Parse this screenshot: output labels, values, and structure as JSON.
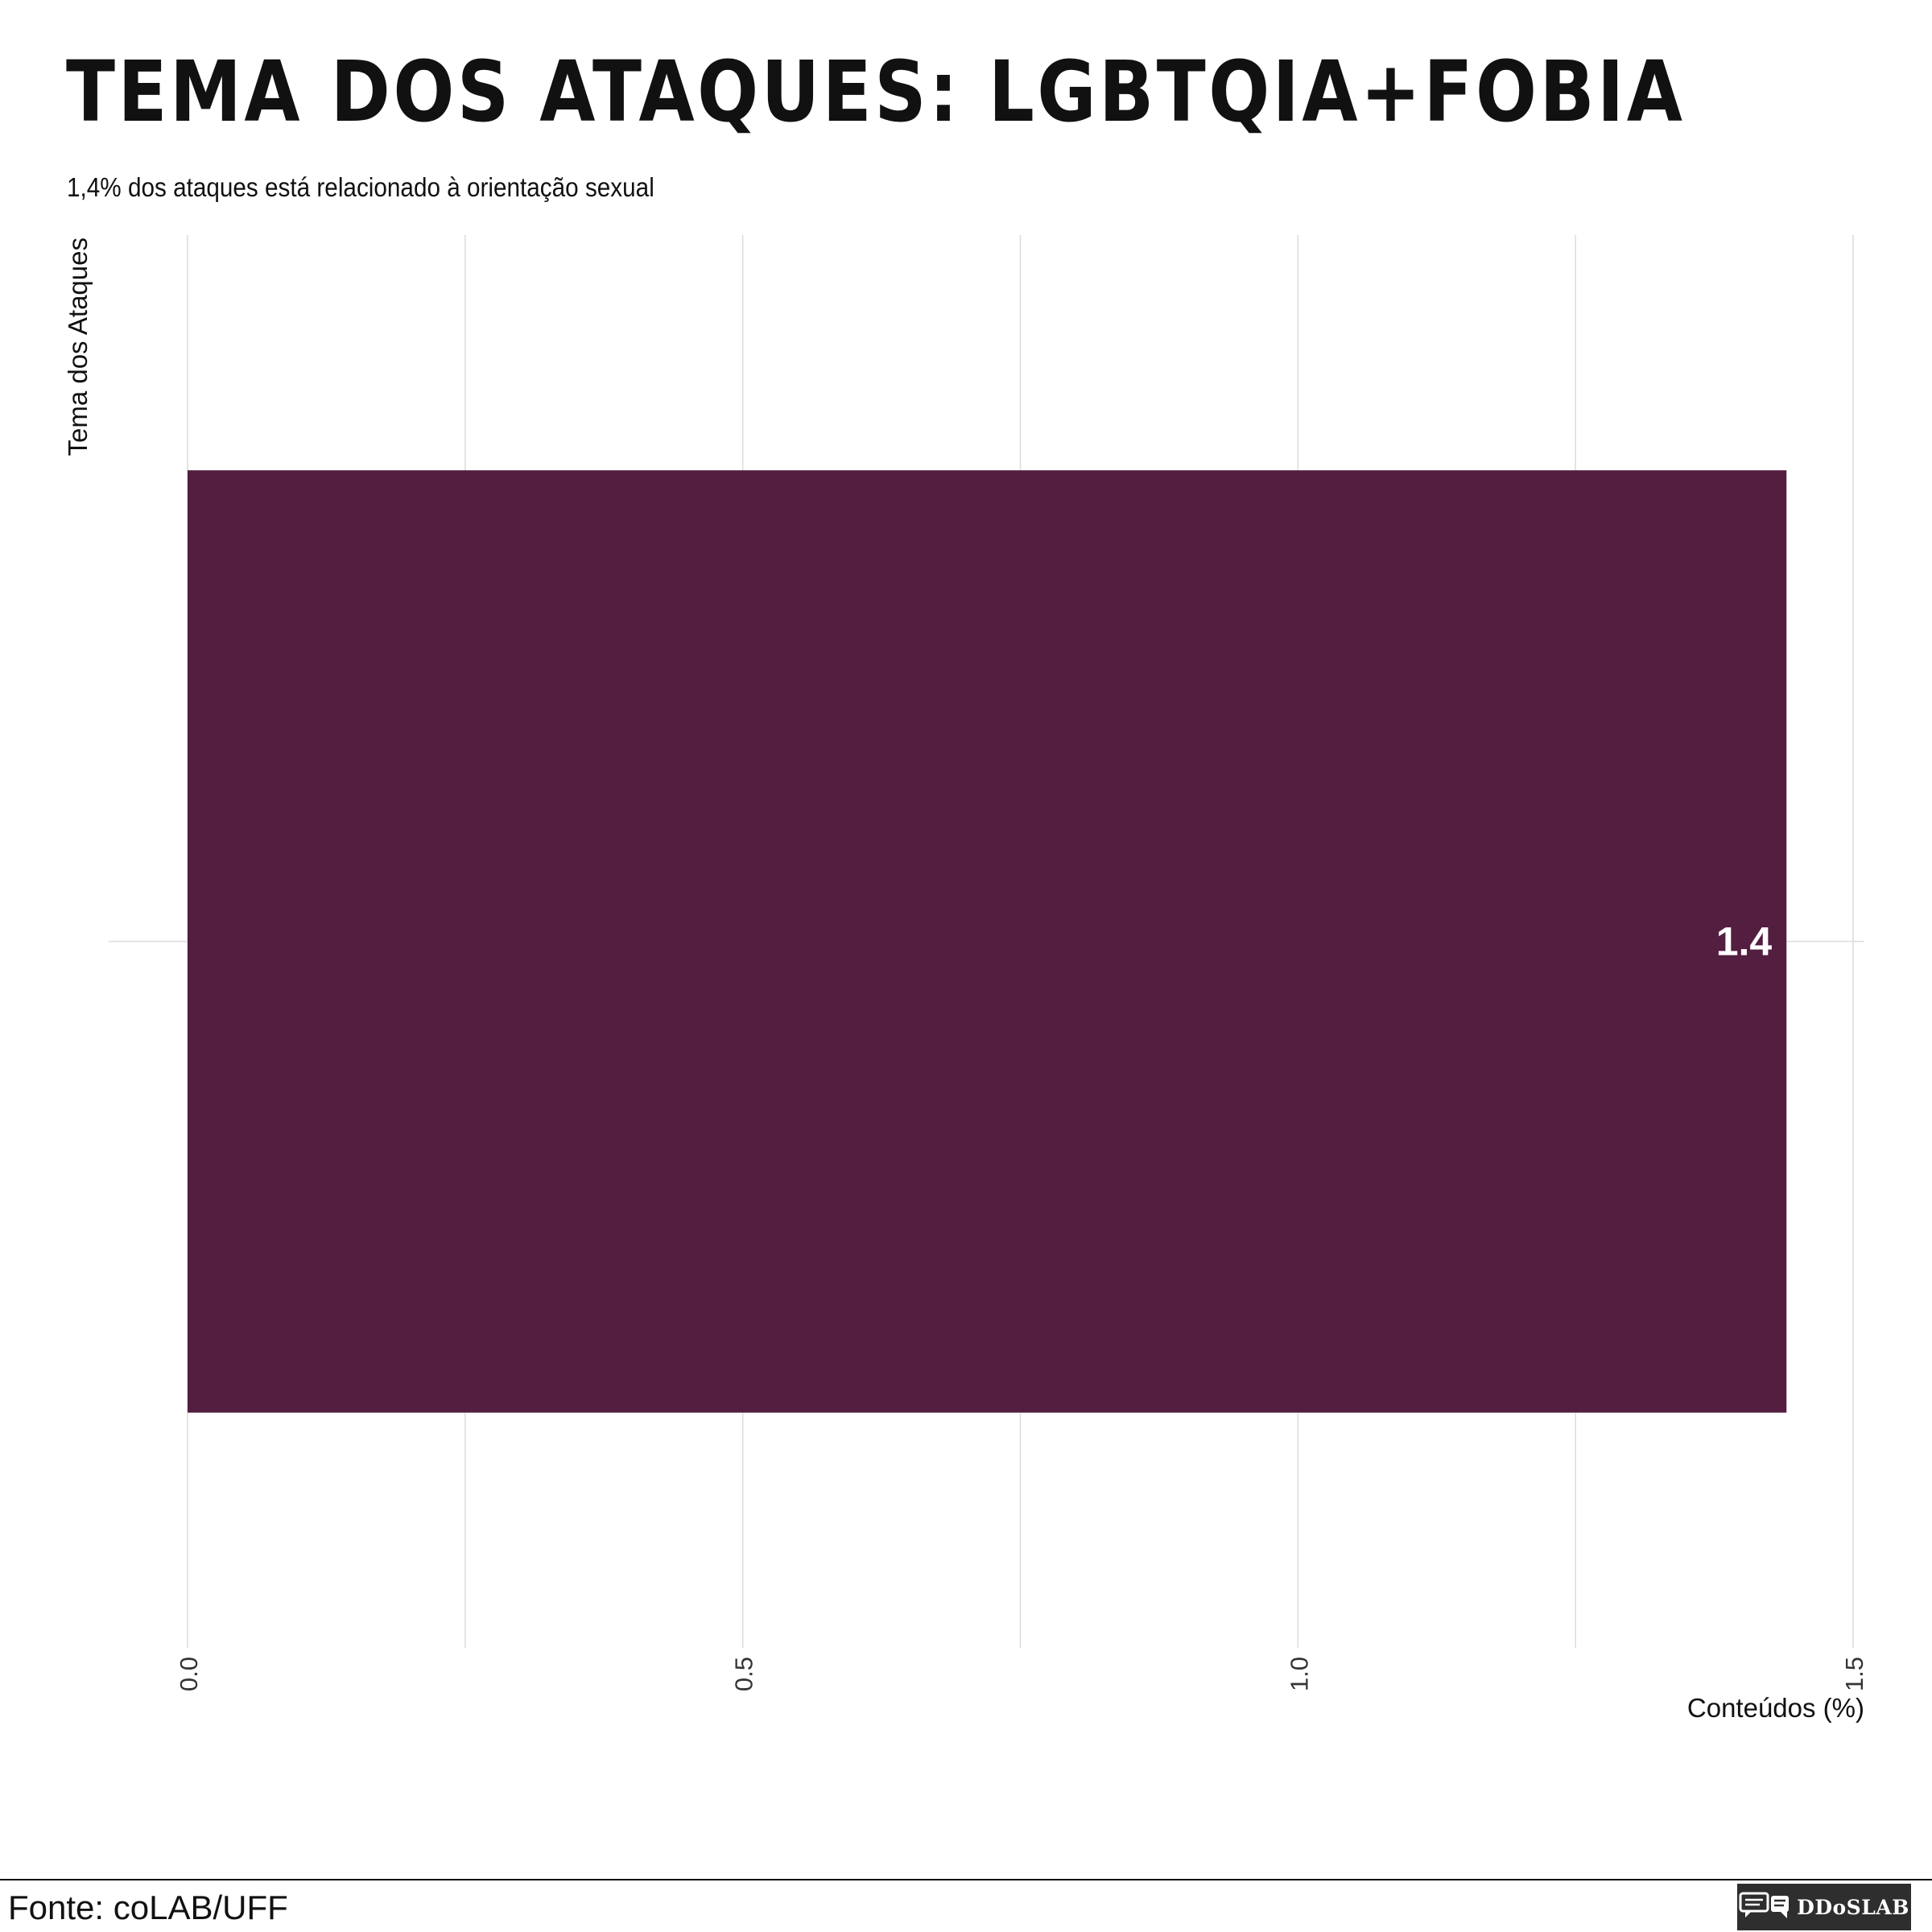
{
  "title": "TEMA DOS ATAQUES: LGBTQIA+FOBIA",
  "subtitle": "1,4% dos ataques está relacionado à orientação sexual",
  "source": "Fonte: coLAB/UFF",
  "brand": {
    "name": "DDoSLAB",
    "icon": "chat-bubbles-icon"
  },
  "colors": {
    "bar": "#531e40",
    "grid": "#dcdcdc",
    "text": "#111111",
    "label": "#ffffff"
  },
  "chart_data": {
    "type": "bar",
    "orientation": "horizontal",
    "categories": [
      ""
    ],
    "values": [
      1.44
    ],
    "data_labels": [
      "1.4"
    ],
    "xlabel": "Conteúdos (%)",
    "ylabel": "Tema dos Ataques",
    "xlim": [
      0,
      1.5
    ],
    "x_ticks": [
      0.0,
      0.5,
      1.0,
      1.5
    ],
    "x_tick_labels": [
      "0.0",
      "0.5",
      "1.0",
      "1.5"
    ],
    "grid": true,
    "legend": "none"
  }
}
